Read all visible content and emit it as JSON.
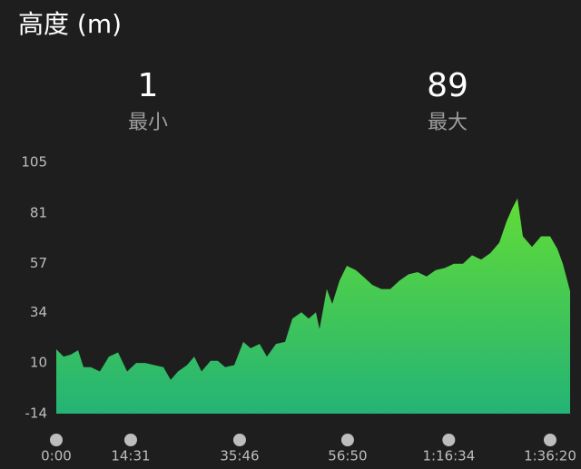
{
  "chart_data": {
    "type": "area",
    "title": "高度 (m)",
    "stats": [
      {
        "value": 1,
        "label": "最小"
      },
      {
        "value": 89,
        "label": "最大"
      }
    ],
    "x": [
      0,
      85,
      170,
      255,
      319,
      404,
      510,
      616,
      723,
      829,
      935,
      1041,
      1148,
      1254,
      1339,
      1424,
      1530,
      1615,
      1700,
      1806,
      1891,
      1976,
      2083,
      2189,
      2274,
      2380,
      2465,
      2571,
      2678,
      2763,
      2869,
      2954,
      3039,
      3081,
      3166,
      3230,
      3315,
      3400,
      3506,
      3591,
      3698,
      3804,
      3910,
      4016,
      4123,
      4229,
      4335,
      4441,
      4548,
      4654,
      4760,
      4866,
      4973,
      5079,
      5185,
      5270,
      5334,
      5398,
      5461,
      5568,
      5674,
      5780,
      5865,
      5929,
      6014
    ],
    "values": [
      16.5,
      13,
      14,
      16,
      8,
      8,
      6,
      13,
      15,
      6,
      10,
      10,
      9,
      8,
      2,
      6,
      9,
      13,
      6,
      11,
      11,
      8,
      9,
      20,
      17,
      19,
      13,
      19,
      20,
      31,
      34,
      31,
      34,
      26,
      45,
      38,
      49,
      56,
      54,
      51,
      47,
      45,
      45,
      49,
      52,
      53,
      51,
      54,
      55,
      57,
      57,
      61,
      59,
      62,
      67,
      77,
      83,
      88,
      70,
      65,
      70,
      70,
      64,
      57,
      44
    ],
    "color_top": "#62dc36",
    "color_bottom": "#24b376",
    "xlim": [
      0,
      6014
    ],
    "ylim": [
      -14,
      105
    ],
    "yticks": [
      105,
      81,
      57,
      34,
      10,
      -14
    ],
    "xticks": [
      {
        "value": 0,
        "label": "0:00"
      },
      {
        "value": 871,
        "label": "14:31"
      },
      {
        "value": 2146,
        "label": "35:46"
      },
      {
        "value": 3410,
        "label": "56:50"
      },
      {
        "value": 4594,
        "label": "1:16:34"
      },
      {
        "value": 5780,
        "label": "1:36:20"
      }
    ]
  }
}
